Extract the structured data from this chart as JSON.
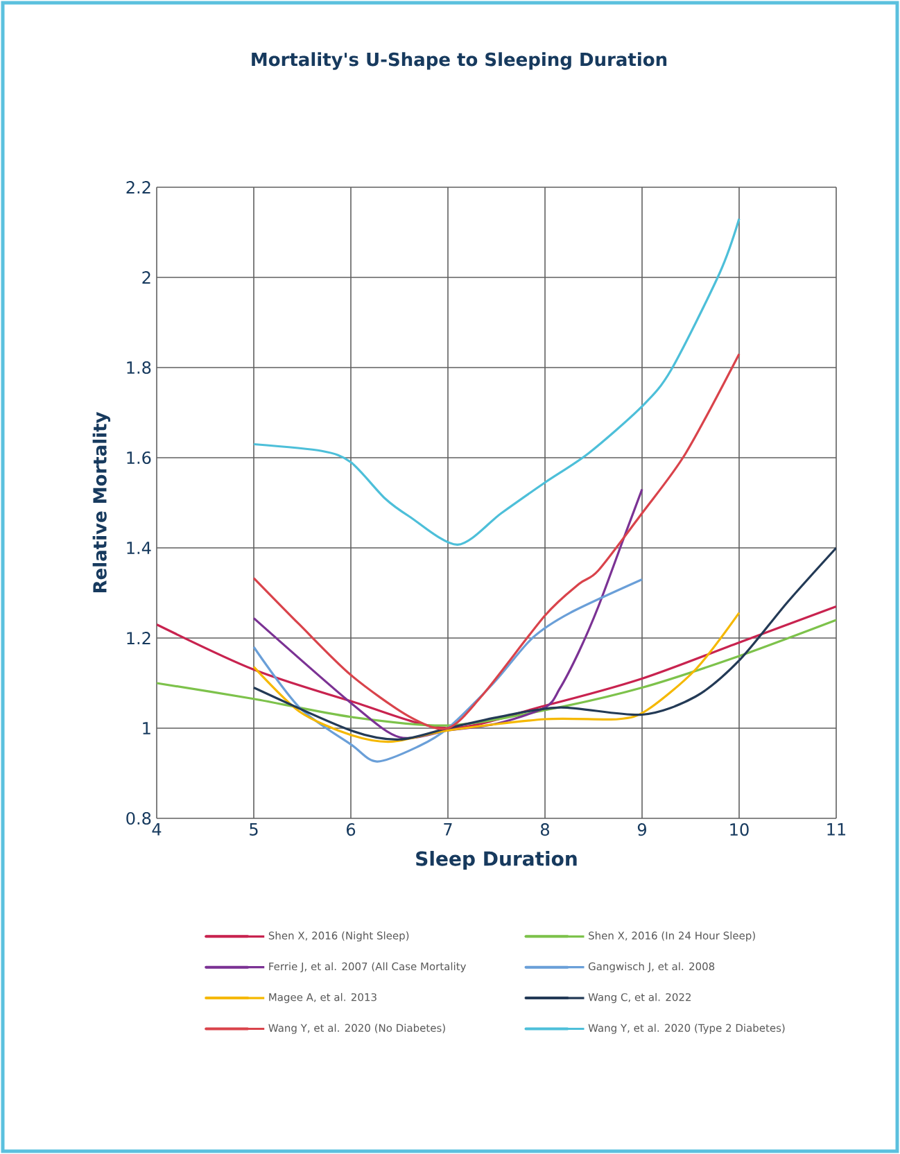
{
  "chart_data": {
    "type": "line",
    "title": "Mortality's U-Shape to Sleeping Duration",
    "xlabel": "Sleep Duration",
    "ylabel": "Relative Mortality",
    "xlim": [
      4,
      11
    ],
    "ylim": [
      0.8,
      2.2
    ],
    "xticks": [
      4,
      5,
      6,
      7,
      8,
      9,
      10,
      11
    ],
    "yticks": [
      0.8,
      1,
      1.2,
      1.4,
      1.6,
      1.8,
      2,
      2.2
    ],
    "grid": true,
    "legend": "bottom",
    "line_style": "solid",
    "series": [
      {
        "name": "Shen X, 2016 (Night Sleep)",
        "color": "#c8234f",
        "x": [
          4,
          5,
          6,
          7,
          8,
          9,
          10,
          11
        ],
        "values": [
          1.23,
          1.13,
          1.06,
          1.0,
          1.05,
          1.11,
          1.19,
          1.27
        ]
      },
      {
        "name": "Shen X, 2016 (In 24 Hour Sleep)",
        "color": "#7dc24b",
        "x": [
          4,
          5,
          6,
          7,
          8,
          9,
          10,
          11
        ],
        "values": [
          1.1,
          1.065,
          1.025,
          1.006,
          1.04,
          1.09,
          1.16,
          1.24
        ]
      },
      {
        "name": "Ferrie J, et al. 2007 (All Case Mortality",
        "color": "#7b3294",
        "x": [
          5,
          6,
          6.5,
          7,
          7.5,
          8,
          8.15,
          8.35,
          8.55,
          8.8,
          9
        ],
        "values": [
          1.244,
          1.056,
          0.98,
          0.995,
          1.01,
          1.046,
          1.087,
          1.17,
          1.27,
          1.415,
          1.53
        ]
      },
      {
        "name": "Gangwisch J, et al. 2008",
        "color": "#6a9fd8",
        "x": [
          5,
          5.47,
          6,
          6.27,
          6.7,
          7,
          7.47,
          7.87,
          8.26,
          9
        ],
        "values": [
          1.18,
          1.046,
          0.964,
          0.926,
          0.96,
          1.0,
          1.1,
          1.2,
          1.256,
          1.33
        ]
      },
      {
        "name": "Magee A, et al. 2013",
        "color": "#f5b800",
        "x": [
          5,
          5.47,
          6,
          6.42,
          7,
          8,
          8.75,
          9.05,
          9.55,
          10
        ],
        "values": [
          1.136,
          1.037,
          0.985,
          0.97,
          0.995,
          1.02,
          1.02,
          1.04,
          1.13,
          1.256
        ]
      },
      {
        "name": "Wang C, et al. 2022",
        "color": "#233a56",
        "x": [
          5,
          6,
          6.5,
          7,
          7.55,
          8.16,
          9,
          9.55,
          10,
          10.5,
          11
        ],
        "values": [
          1.09,
          0.995,
          0.975,
          1.0,
          1.026,
          1.046,
          1.03,
          1.07,
          1.15,
          1.28,
          1.4
        ]
      },
      {
        "name": "Wang Y, et al. 2020 (No Diabetes)",
        "color": "#d9434b",
        "x": [
          5,
          5.47,
          6,
          6.6,
          7,
          7.37,
          8,
          8.35,
          8.55,
          9,
          9.45,
          10
        ],
        "values": [
          1.333,
          1.23,
          1.118,
          1.026,
          1.0,
          1.077,
          1.25,
          1.32,
          1.35,
          1.477,
          1.61,
          1.83
        ]
      },
      {
        "name": "Wang Y, et al. 2020 (Type 2 Diabetes)",
        "color": "#4dbfd9",
        "x": [
          5,
          5.7,
          6,
          6.35,
          6.6,
          7.1,
          7.55,
          8,
          8.45,
          9,
          9.3,
          9.8,
          10
        ],
        "values": [
          1.63,
          1.615,
          1.59,
          1.51,
          1.47,
          1.407,
          1.477,
          1.545,
          1.61,
          1.714,
          1.795,
          2.01,
          2.13
        ]
      }
    ]
  }
}
